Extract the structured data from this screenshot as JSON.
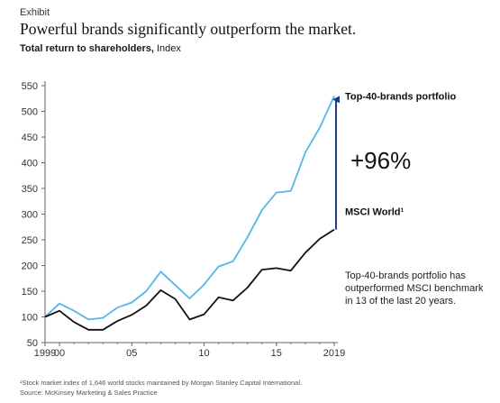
{
  "header": {
    "exhibit": "Exhibit",
    "title": "Powerful brands significantly outperform the market.",
    "subtitle_bold": "Total return to shareholders,",
    "subtitle_rest": " Index"
  },
  "annotation": {
    "gap_label": "+96%",
    "note": "Top-40-brands portfolio has outperformed MSCI benchmark in 13 of the last 20 years."
  },
  "footer": {
    "footnote": "¹Stock market index of 1,646 world stocks maintained by Morgan Stanley Capital International.",
    "source": "Source: McKinsey Marketing & Sales Practice"
  },
  "colors": {
    "brands_series": "#55b7e6",
    "msci_series": "#111111",
    "arrow": "#1f3c8c",
    "axis": "#666666"
  },
  "chart_data": {
    "type": "line",
    "title": "Total return to shareholders, Index",
    "xlabel": "",
    "ylabel": "",
    "x": [
      1999,
      2000,
      2001,
      2002,
      2003,
      2004,
      2005,
      2006,
      2007,
      2008,
      2009,
      2010,
      2011,
      2012,
      2013,
      2014,
      2015,
      2016,
      2017,
      2018,
      2019
    ],
    "xlim": [
      1999,
      2019
    ],
    "ylim": [
      50,
      550
    ],
    "x_ticks": [
      {
        "value": 1999,
        "label": "1999"
      },
      {
        "value": 2000,
        "label": "00"
      },
      {
        "value": 2005,
        "label": "05"
      },
      {
        "value": 2010,
        "label": "10"
      },
      {
        "value": 2015,
        "label": "15"
      },
      {
        "value": 2019,
        "label": "2019"
      }
    ],
    "y_ticks": [
      50,
      100,
      150,
      200,
      250,
      300,
      350,
      400,
      450,
      500,
      550
    ],
    "grid": false,
    "series": [
      {
        "name": "Top-40-brands portfolio",
        "color": "#55b7e6",
        "values": [
          100,
          126,
          112,
          95,
          98,
          118,
          128,
          150,
          188,
          162,
          136,
          163,
          198,
          208,
          255,
          308,
          342,
          345,
          420,
          468,
          530
        ]
      },
      {
        "name": "MSCI World¹",
        "color": "#111111",
        "values": [
          100,
          112,
          90,
          75,
          75,
          92,
          104,
          122,
          152,
          135,
          95,
          105,
          138,
          132,
          157,
          192,
          195,
          190,
          225,
          252,
          270
        ]
      }
    ]
  }
}
